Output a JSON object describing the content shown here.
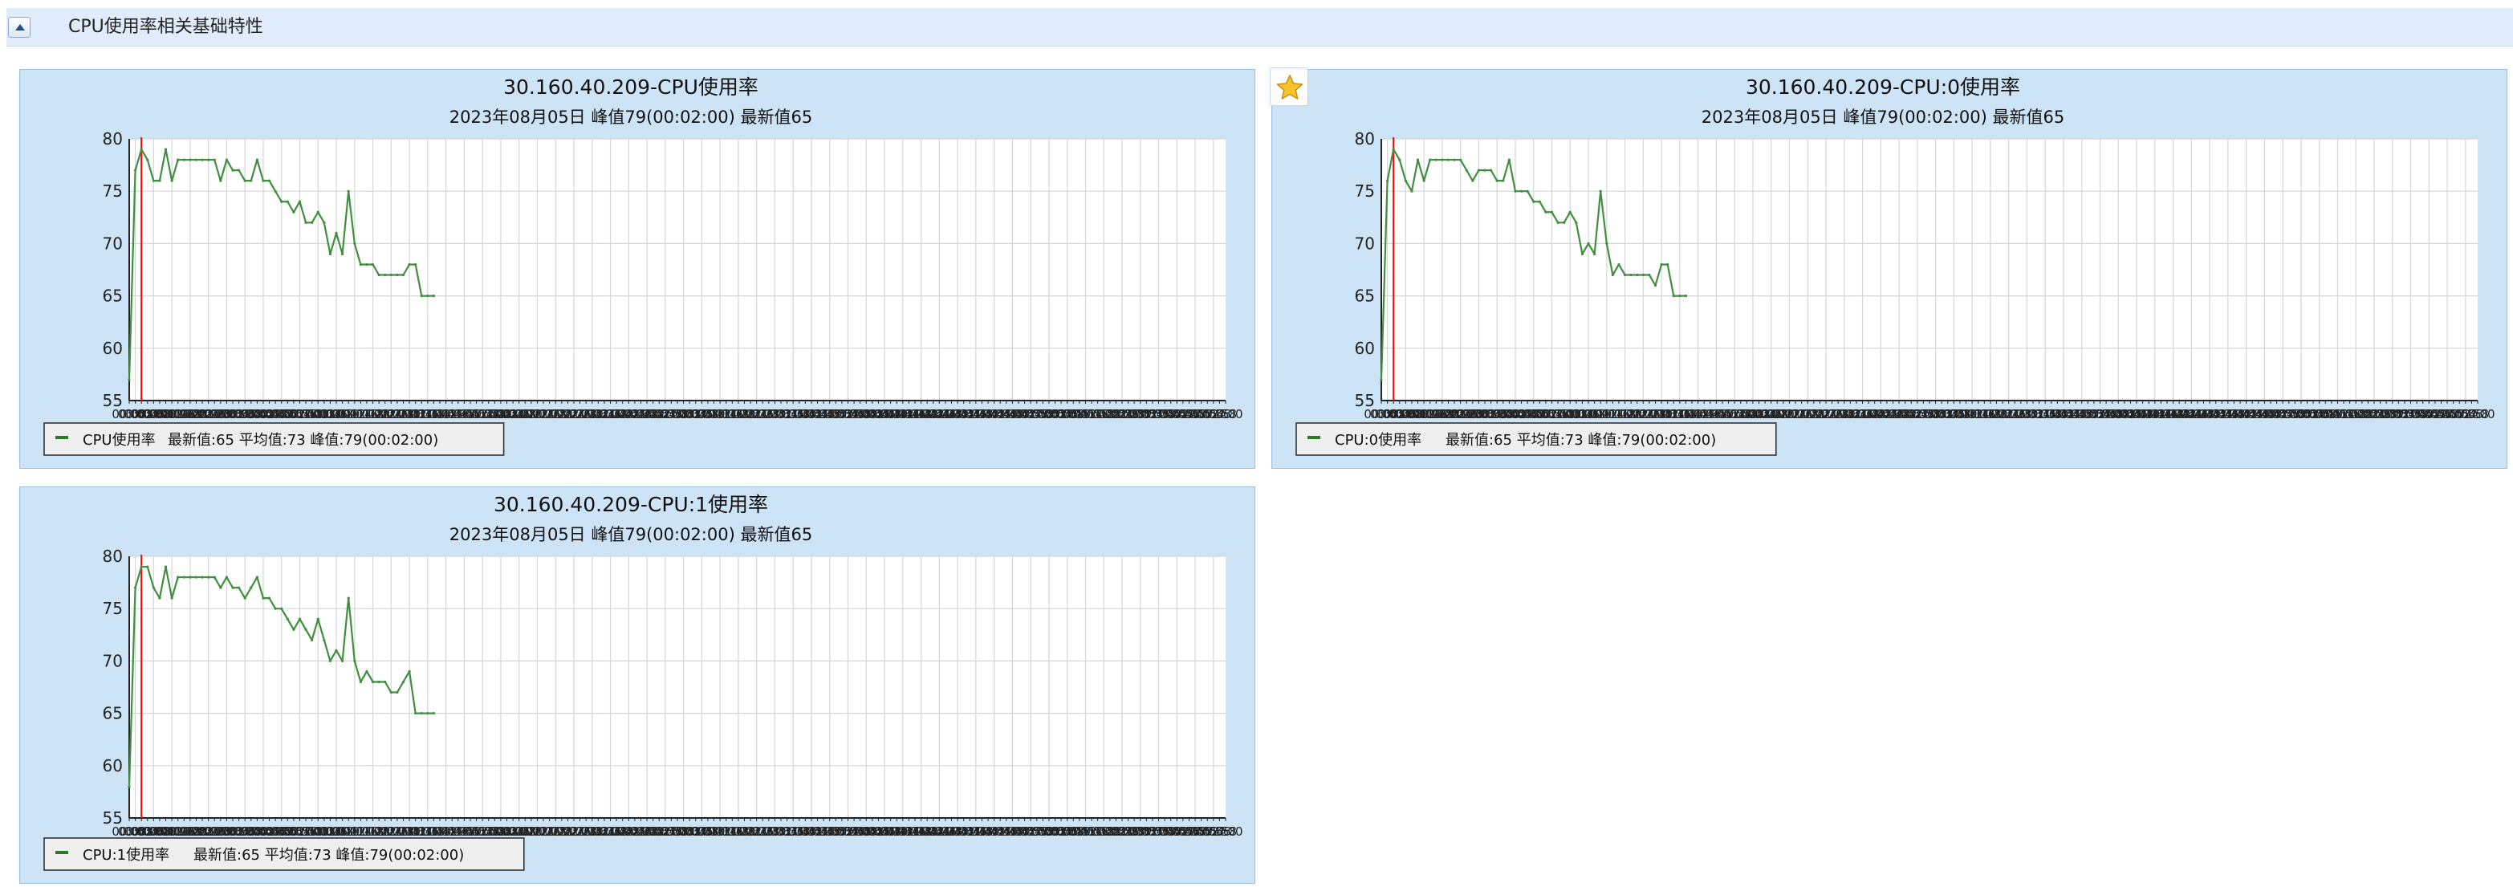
{
  "section": {
    "title": "CPU使用率相关基础特性"
  },
  "icons": {
    "collapse": "collapse-up-icon",
    "favorite": "star-icon"
  },
  "colors": {
    "line": "#3f8f3f",
    "peak_marker": "#ff0000",
    "panel_bg": "#cde4f7",
    "plot_bg": "#ffffff",
    "grid": "#d6d6d6"
  },
  "x_tick_labels": [
    "00:00",
    "00:02",
    "00:04",
    "00:06",
    "00:08",
    "00:10",
    "00:12",
    "00:14",
    "00:16",
    "00:18",
    "00:20",
    "00:22",
    "00:24",
    "00:26",
    "00:28",
    "00:30",
    "00:32",
    "00:34",
    "00:36",
    "00:38",
    "00:40",
    "00:42",
    "00:44",
    "00:46",
    "00:48",
    "00:50",
    "00:52",
    "00:54",
    "00:56",
    "00:58",
    "01:00",
    "01:02",
    "01:04",
    "01:06",
    "01:08",
    "01:10",
    "01:12",
    "01:14",
    "01:16",
    "01:18",
    "01:20",
    "01:22",
    "01:24",
    "01:26",
    "01:28",
    "01:30",
    "01:32",
    "01:34",
    "01:36",
    "01:38",
    "01:40",
    "01:42",
    "01:44",
    "01:46",
    "01:48",
    "01:50",
    "01:52",
    "01:54",
    "01:56",
    "01:58",
    "02:00",
    "02:02",
    "02:04",
    "02:06",
    "02:08",
    "02:10",
    "02:12",
    "02:14",
    "02:16",
    "02:18",
    "02:20",
    "02:22",
    "02:24",
    "02:26",
    "02:28",
    "02:30",
    "02:32",
    "02:34",
    "02:36",
    "02:38",
    "02:40",
    "02:42",
    "02:44",
    "02:46",
    "02:48",
    "02:50",
    "02:52",
    "02:54",
    "02:56",
    "02:58",
    "03:00",
    "03:02",
    "03:04",
    "03:06",
    "03:08",
    "03:10",
    "03:12",
    "03:14",
    "03:16",
    "03:18",
    "03:20",
    "03:22",
    "03:24",
    "03:26",
    "03:28",
    "03:30",
    "03:32",
    "03:34",
    "03:36",
    "03:38",
    "03:40",
    "03:42",
    "03:44",
    "03:46",
    "03:48",
    "03:50",
    "03:52",
    "03:54",
    "03:56",
    "03:58",
    "04:00",
    "04:02",
    "04:04",
    "04:06",
    "04:08",
    "04:10",
    "04:12",
    "04:14",
    "04:16",
    "04:18",
    "04:20",
    "04:22",
    "04:24",
    "04:26",
    "04:28",
    "04:30",
    "04:32",
    "04:34",
    "04:36",
    "04:38",
    "04:40",
    "04:42",
    "04:44",
    "04:46",
    "04:48",
    "04:50",
    "04:52",
    "04:54",
    "04:56",
    "04:58",
    "05:00",
    "05:02",
    "05:04",
    "05:06",
    "05:08",
    "05:10",
    "05:12",
    "05:14",
    "05:16",
    "05:18",
    "05:20",
    "05:22",
    "05:24",
    "05:26",
    "05:28",
    "05:30",
    "05:32",
    "05:34",
    "05:36",
    "05:38",
    "05:40",
    "05:42",
    "05:44",
    "05:46",
    "05:48",
    "05:50",
    "05:52",
    "05:54",
    "05:56",
    "05:58",
    "00:00"
  ],
  "chart_data": [
    {
      "type": "line",
      "title": "30.160.40.209-CPU使用率",
      "subtitle": "2023年08月05日  峰值79(00:02:00)  最新值65",
      "xlabel": "",
      "ylabel": "",
      "ylim": [
        55,
        80
      ],
      "y_ticks": [
        55,
        60,
        65,
        70,
        75,
        80
      ],
      "grid": true,
      "legend_position": "bottom-left",
      "legend": {
        "label": "CPU使用率",
        "text": "最新值:65   平均值:73   峰值:79(00:02:00)"
      },
      "peak_index": 2,
      "series": [
        {
          "name": "CPU使用率",
          "values": [
            57,
            77,
            79,
            78,
            76,
            76,
            79,
            76,
            78,
            78,
            78,
            78,
            78,
            78,
            78,
            76,
            78,
            77,
            77,
            76,
            76,
            78,
            76,
            76,
            75,
            74,
            74,
            73,
            74,
            72,
            72,
            73,
            72,
            69,
            71,
            69,
            75,
            70,
            68,
            68,
            68,
            67,
            67,
            67,
            67,
            67,
            68,
            68,
            65,
            65,
            65
          ]
        }
      ]
    },
    {
      "type": "line",
      "title": "30.160.40.209-CPU:0使用率",
      "subtitle": "2023年08月05日  峰值79(00:02:00)  最新值65",
      "xlabel": "",
      "ylabel": "",
      "ylim": [
        55,
        80
      ],
      "y_ticks": [
        55,
        60,
        65,
        70,
        75,
        80
      ],
      "grid": true,
      "legend_position": "bottom-left",
      "legend": {
        "label": "CPU:0使用率",
        "text": "最新值:65   平均值:73   峰值:79(00:02:00)"
      },
      "peak_index": 2,
      "series": [
        {
          "name": "CPU:0使用率",
          "values": [
            57,
            76,
            79,
            78,
            76,
            75,
            78,
            76,
            78,
            78,
            78,
            78,
            78,
            78,
            77,
            76,
            77,
            77,
            77,
            76,
            76,
            78,
            75,
            75,
            75,
            74,
            74,
            73,
            73,
            72,
            72,
            73,
            72,
            69,
            70,
            69,
            75,
            70,
            67,
            68,
            67,
            67,
            67,
            67,
            67,
            66,
            68,
            68,
            65,
            65,
            65
          ]
        }
      ]
    },
    {
      "type": "line",
      "title": "30.160.40.209-CPU:1使用率",
      "subtitle": "2023年08月05日  峰值79(00:02:00)  最新值65",
      "xlabel": "",
      "ylabel": "",
      "ylim": [
        55,
        80
      ],
      "y_ticks": [
        55,
        60,
        65,
        70,
        75,
        80
      ],
      "grid": true,
      "legend_position": "bottom-left",
      "legend": {
        "label": "CPU:1使用率",
        "text": "最新值:65   平均值:73   峰值:79(00:02:00)"
      },
      "peak_index": 2,
      "series": [
        {
          "name": "CPU:1使用率",
          "values": [
            58,
            77,
            79,
            79,
            77,
            76,
            79,
            76,
            78,
            78,
            78,
            78,
            78,
            78,
            78,
            77,
            78,
            77,
            77,
            76,
            77,
            78,
            76,
            76,
            75,
            75,
            74,
            73,
            74,
            73,
            72,
            74,
            72,
            70,
            71,
            70,
            76,
            70,
            68,
            69,
            68,
            68,
            68,
            67,
            67,
            68,
            69,
            65,
            65,
            65,
            65
          ]
        }
      ]
    }
  ]
}
